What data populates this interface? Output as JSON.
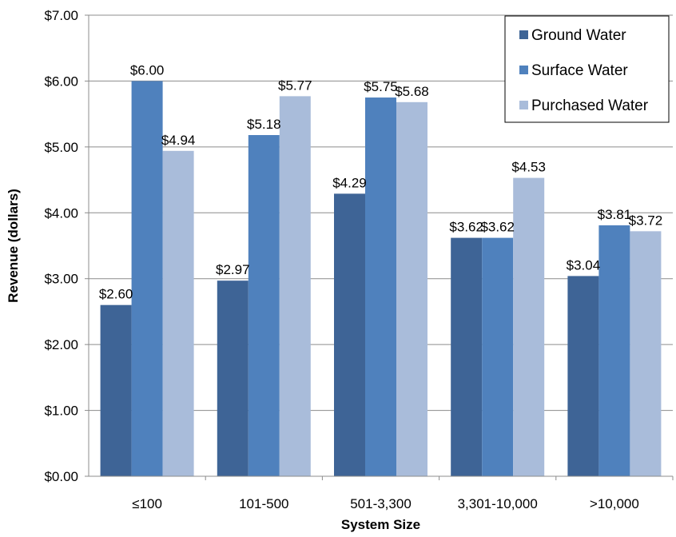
{
  "chart_data": {
    "type": "bar",
    "title": "",
    "xlabel": "System Size",
    "ylabel": "Revenue (dollars)",
    "ylim": [
      0,
      7
    ],
    "yticks": [
      0,
      1,
      2,
      3,
      4,
      5,
      6,
      7
    ],
    "ytick_labels": [
      "$0.00",
      "$1.00",
      "$2.00",
      "$3.00",
      "$4.00",
      "$5.00",
      "$6.00",
      "$7.00"
    ],
    "grid": true,
    "legend_position": "top-right",
    "categories": [
      "≤100",
      "101-500",
      "501-3,300",
      "3,301-10,000",
      ">10,000"
    ],
    "series": [
      {
        "name": "Ground Water",
        "color": "#3E6496",
        "values": [
          2.6,
          2.97,
          4.29,
          3.62,
          3.04
        ],
        "labels": [
          "$2.60",
          "$2.97",
          "$4.29",
          "$3.62",
          "$3.04"
        ]
      },
      {
        "name": "Surface Water",
        "color": "#4F81BD",
        "values": [
          6.0,
          5.18,
          5.75,
          3.62,
          3.81
        ],
        "labels": [
          "$6.00",
          "$5.18",
          "$5.75",
          "$3.62",
          "$3.81"
        ]
      },
      {
        "name": "Purchased Water",
        "color": "#A9BCDA",
        "values": [
          4.94,
          5.77,
          5.68,
          4.53,
          3.72
        ],
        "labels": [
          "$4.94",
          "$5.77",
          "$5.68",
          "$4.53",
          "$3.72"
        ]
      }
    ]
  }
}
